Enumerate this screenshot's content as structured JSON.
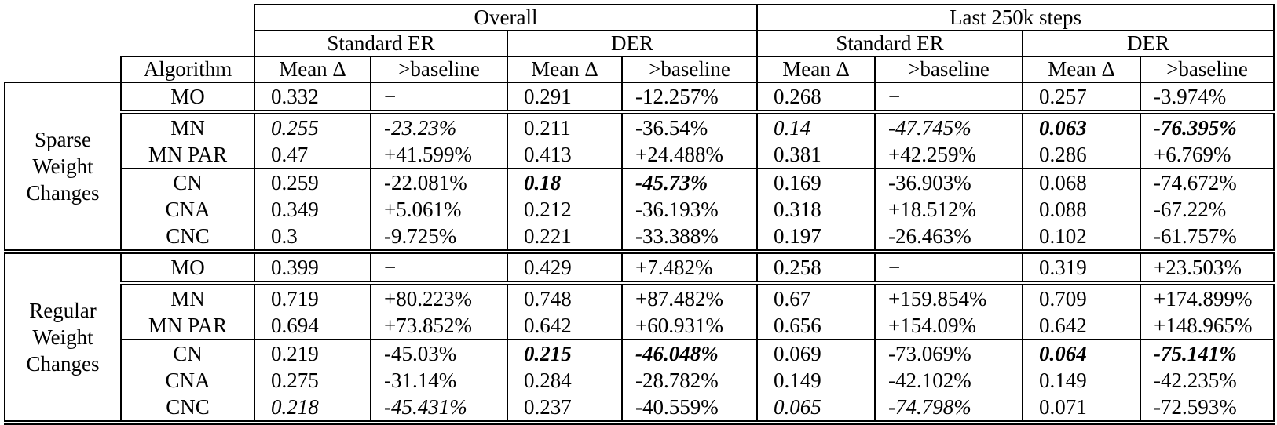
{
  "table": {
    "header": {
      "overall": "Overall",
      "last": "Last 250k steps",
      "sub": [
        "Standard ER",
        "DER",
        "Standard ER",
        "DER"
      ],
      "algorithm": "Algorithm",
      "mean": "Mean Δ",
      "baseline": ">baseline"
    },
    "groups": [
      {
        "label_lines": [
          "Sparse",
          "Weight",
          "Changes"
        ],
        "rows": [
          {
            "algorithm": "MO",
            "sep_after": "double",
            "cells": [
              {
                "t": "0.332"
              },
              {
                "t": "−"
              },
              {
                "t": "0.291"
              },
              {
                "t": "-12.257%"
              },
              {
                "t": "0.268"
              },
              {
                "t": "−"
              },
              {
                "t": "0.257"
              },
              {
                "t": "-3.974%"
              }
            ]
          },
          {
            "algorithm": "MN",
            "cells": [
              {
                "t": "0.255",
                "s": "i"
              },
              {
                "t": "-23.23%",
                "s": "i"
              },
              {
                "t": "0.211"
              },
              {
                "t": "-36.54%"
              },
              {
                "t": "0.14",
                "s": "i"
              },
              {
                "t": "-47.745%",
                "s": "i"
              },
              {
                "t": "0.063",
                "s": "bi"
              },
              {
                "t": "-76.395%",
                "s": "bi"
              }
            ]
          },
          {
            "algorithm": "MN PAR",
            "sep_after": "single",
            "cells": [
              {
                "t": "0.47"
              },
              {
                "t": "+41.599%"
              },
              {
                "t": "0.413"
              },
              {
                "t": "+24.488%"
              },
              {
                "t": "0.381"
              },
              {
                "t": "+42.259%"
              },
              {
                "t": "0.286"
              },
              {
                "t": "+6.769%"
              }
            ]
          },
          {
            "algorithm": "CN",
            "cells": [
              {
                "t": "0.259"
              },
              {
                "t": "-22.081%"
              },
              {
                "t": "0.18",
                "s": "bi"
              },
              {
                "t": "-45.73%",
                "s": "bi"
              },
              {
                "t": "0.169"
              },
              {
                "t": "-36.903%"
              },
              {
                "t": "0.068"
              },
              {
                "t": "-74.672%"
              }
            ]
          },
          {
            "algorithm": "CNA",
            "cells": [
              {
                "t": "0.349"
              },
              {
                "t": "+5.061%"
              },
              {
                "t": "0.212"
              },
              {
                "t": "-36.193%"
              },
              {
                "t": "0.318"
              },
              {
                "t": "+18.512%"
              },
              {
                "t": "0.088"
              },
              {
                "t": "-67.22%"
              }
            ]
          },
          {
            "algorithm": "CNC",
            "sep_after": "double",
            "cells": [
              {
                "t": "0.3"
              },
              {
                "t": "-9.725%"
              },
              {
                "t": "0.221"
              },
              {
                "t": "-33.388%"
              },
              {
                "t": "0.197"
              },
              {
                "t": "-26.463%"
              },
              {
                "t": "0.102"
              },
              {
                "t": "-61.757%"
              }
            ]
          }
        ]
      },
      {
        "label_lines": [
          "Regular",
          "Weight",
          "Changes"
        ],
        "rows": [
          {
            "algorithm": "MO",
            "sep_after": "double",
            "cells": [
              {
                "t": "0.399"
              },
              {
                "t": "−"
              },
              {
                "t": "0.429"
              },
              {
                "t": "+7.482%"
              },
              {
                "t": "0.258"
              },
              {
                "t": "−"
              },
              {
                "t": "0.319"
              },
              {
                "t": "+23.503%"
              }
            ]
          },
          {
            "algorithm": "MN",
            "cells": [
              {
                "t": "0.719"
              },
              {
                "t": "+80.223%"
              },
              {
                "t": "0.748"
              },
              {
                "t": "+87.482%"
              },
              {
                "t": "0.67"
              },
              {
                "t": "+159.854%"
              },
              {
                "t": "0.709"
              },
              {
                "t": "+174.899%"
              }
            ]
          },
          {
            "algorithm": "MN PAR",
            "sep_after": "single",
            "cells": [
              {
                "t": "0.694"
              },
              {
                "t": "+73.852%"
              },
              {
                "t": "0.642"
              },
              {
                "t": "+60.931%"
              },
              {
                "t": "0.656"
              },
              {
                "t": "+154.09%"
              },
              {
                "t": "0.642"
              },
              {
                "t": "+148.965%"
              }
            ]
          },
          {
            "algorithm": "CN",
            "cells": [
              {
                "t": "0.219"
              },
              {
                "t": "-45.03%"
              },
              {
                "t": "0.215",
                "s": "bi"
              },
              {
                "t": "-46.048%",
                "s": "bi"
              },
              {
                "t": "0.069"
              },
              {
                "t": "-73.069%"
              },
              {
                "t": "0.064",
                "s": "bi"
              },
              {
                "t": "-75.141%",
                "s": "bi"
              }
            ]
          },
          {
            "algorithm": "CNA",
            "cells": [
              {
                "t": "0.275"
              },
              {
                "t": "-31.14%"
              },
              {
                "t": "0.284"
              },
              {
                "t": "-28.782%"
              },
              {
                "t": "0.149"
              },
              {
                "t": "-42.102%"
              },
              {
                "t": "0.149"
              },
              {
                "t": "-42.235%"
              }
            ]
          },
          {
            "algorithm": "CNC",
            "sep_after": "double",
            "cells": [
              {
                "t": "0.218",
                "s": "i"
              },
              {
                "t": "-45.431%",
                "s": "i"
              },
              {
                "t": "0.237"
              },
              {
                "t": "-40.559%"
              },
              {
                "t": "0.065",
                "s": "i"
              },
              {
                "t": "-74.798%",
                "s": "i"
              },
              {
                "t": "0.071"
              },
              {
                "t": "-72.593%"
              }
            ]
          }
        ]
      }
    ]
  }
}
